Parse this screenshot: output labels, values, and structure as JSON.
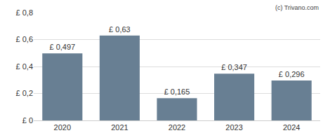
{
  "chart_data": {
    "type": "bar",
    "categories": [
      "2020",
      "2021",
      "2022",
      "2023",
      "2024"
    ],
    "values": [
      0.497,
      0.63,
      0.165,
      0.347,
      0.296
    ],
    "value_labels": [
      "£ 0,497",
      "£ 0,63",
      "£ 0,165",
      "£ 0,347",
      "£ 0,296"
    ],
    "data_labels": true,
    "color": "#687f93",
    "ylim": [
      0,
      0.8
    ],
    "yticks": [
      {
        "value": 0,
        "label": "£ 0"
      },
      {
        "value": 0.2,
        "label": "£ 0,2"
      },
      {
        "value": 0.4,
        "label": "£ 0,4"
      },
      {
        "value": 0.6,
        "label": "£ 0,6"
      },
      {
        "value": 0.8,
        "label": "£ 0,8"
      }
    ],
    "grid": true,
    "annotations": [
      "(c) Trivano.com"
    ]
  }
}
